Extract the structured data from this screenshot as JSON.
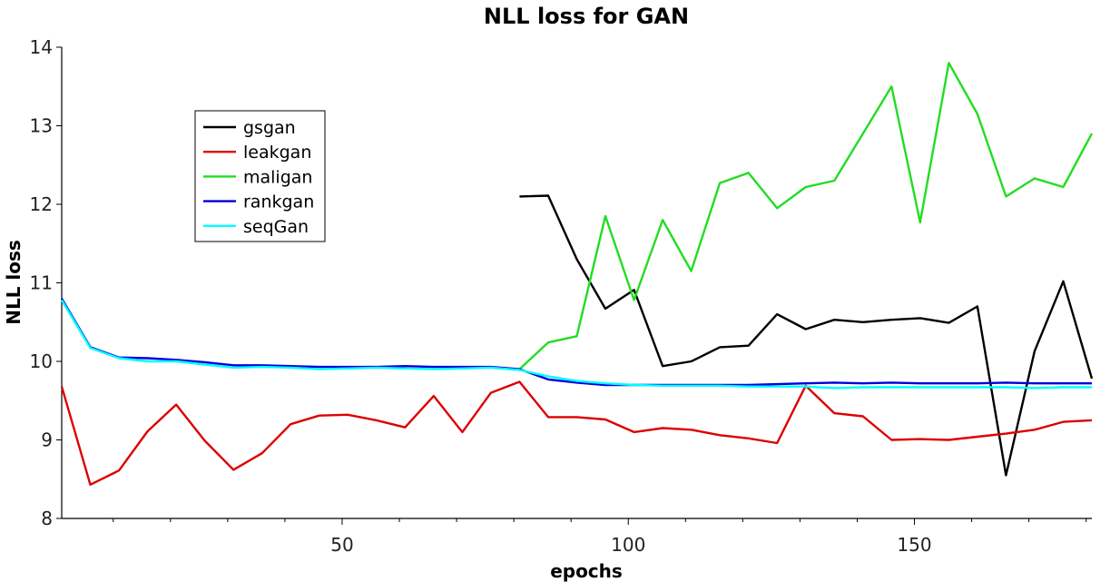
{
  "chart_data": {
    "type": "line",
    "title": "NLL loss for GAN",
    "xlabel": "epochs",
    "ylabel": "NLL loss",
    "xlim": [
      1,
      181
    ],
    "ylim": [
      8,
      14
    ],
    "xticks_major": [
      50,
      100,
      150
    ],
    "xticks_minor": [
      10,
      20,
      30,
      40,
      60,
      70,
      80,
      90,
      110,
      120,
      130,
      140,
      160,
      170,
      180
    ],
    "yticks": [
      8,
      9,
      10,
      11,
      12,
      13,
      14
    ],
    "grid": false,
    "legend_position": "top-left",
    "series": [
      {
        "name": "gsgan",
        "color": "#000000",
        "x": [
          81,
          86,
          91,
          96,
          101,
          106,
          111,
          116,
          121,
          126,
          131,
          136,
          141,
          146,
          151,
          156,
          161,
          166,
          171,
          176,
          181
        ],
        "values": [
          12.1,
          12.11,
          11.3,
          10.67,
          10.91,
          9.94,
          10.0,
          10.18,
          10.2,
          10.6,
          10.41,
          10.53,
          10.5,
          10.53,
          10.55,
          10.49,
          10.7,
          8.55,
          10.13,
          11.02,
          9.78
        ]
      },
      {
        "name": "leakgan",
        "color": "#dd0000",
        "x": [
          1,
          6,
          11,
          16,
          21,
          26,
          31,
          36,
          41,
          46,
          51,
          56,
          61,
          66,
          71,
          76,
          81,
          86,
          91,
          96,
          101,
          106,
          111,
          116,
          121,
          126,
          131,
          136,
          141,
          146,
          151,
          156,
          161,
          166,
          171,
          176,
          181
        ],
        "values": [
          9.68,
          8.43,
          8.61,
          9.11,
          9.45,
          8.99,
          8.62,
          8.83,
          9.2,
          9.31,
          9.32,
          9.25,
          9.16,
          9.56,
          9.1,
          9.6,
          9.74,
          9.29,
          9.29,
          9.26,
          9.1,
          9.15,
          9.13,
          9.06,
          9.02,
          8.96,
          9.69,
          9.34,
          9.3,
          9.0,
          9.01,
          9.0,
          9.04,
          9.08,
          9.13,
          9.23,
          9.25
        ]
      },
      {
        "name": "maligan",
        "color": "#22dd22",
        "x": [
          81,
          86,
          91,
          96,
          101,
          106,
          111,
          116,
          121,
          126,
          131,
          136,
          141,
          146,
          151,
          156,
          161,
          166,
          171,
          176,
          181
        ],
        "values": [
          9.9,
          10.24,
          10.32,
          11.85,
          10.78,
          11.8,
          11.15,
          12.27,
          12.4,
          11.95,
          12.22,
          12.3,
          12.9,
          13.5,
          11.77,
          13.8,
          13.15,
          12.1,
          12.33,
          12.22,
          12.9
        ]
      },
      {
        "name": "rankgan",
        "color": "#0000dd",
        "x": [
          1,
          6,
          11,
          16,
          21,
          26,
          31,
          36,
          41,
          46,
          51,
          56,
          61,
          66,
          71,
          76,
          81,
          86,
          91,
          96,
          101,
          106,
          111,
          116,
          121,
          126,
          131,
          136,
          141,
          146,
          151,
          156,
          161,
          166,
          171,
          176,
          181
        ],
        "values": [
          10.8,
          10.18,
          10.05,
          10.04,
          10.02,
          9.99,
          9.95,
          9.95,
          9.94,
          9.93,
          9.93,
          9.93,
          9.94,
          9.93,
          9.93,
          9.93,
          9.9,
          9.77,
          9.73,
          9.7,
          9.7,
          9.7,
          9.7,
          9.7,
          9.7,
          9.71,
          9.72,
          9.73,
          9.72,
          9.73,
          9.72,
          9.72,
          9.72,
          9.73,
          9.72,
          9.72,
          9.72
        ]
      },
      {
        "name": "seqGan",
        "color": "#00ffff",
        "x": [
          1,
          6,
          11,
          16,
          21,
          26,
          31,
          36,
          41,
          46,
          51,
          56,
          61,
          66,
          71,
          76,
          81,
          86,
          91,
          96,
          101,
          106,
          111,
          116,
          121,
          126,
          131,
          136,
          141,
          146,
          151,
          156,
          161,
          166,
          171,
          176,
          181
        ],
        "values": [
          10.78,
          10.17,
          10.04,
          10.0,
          10.0,
          9.96,
          9.92,
          9.93,
          9.92,
          9.9,
          9.91,
          9.92,
          9.91,
          9.9,
          9.91,
          9.92,
          9.89,
          9.81,
          9.75,
          9.72,
          9.7,
          9.69,
          9.69,
          9.69,
          9.68,
          9.68,
          9.68,
          9.66,
          9.67,
          9.67,
          9.67,
          9.67,
          9.67,
          9.67,
          9.66,
          9.67,
          9.67
        ]
      }
    ]
  }
}
